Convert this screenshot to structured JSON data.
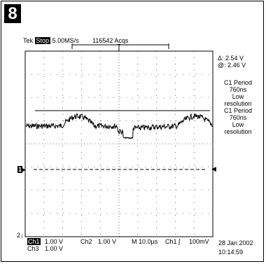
{
  "figure": {
    "number": "8"
  },
  "header": {
    "brand": "Tek",
    "state": "Stop",
    "rate": "5.00MS/s",
    "acqs": "116542 Acqs",
    "trigger_marker": "T"
  },
  "measurements": {
    "delta": "Δ: 2.54 V",
    "at": "@: 2.46 V",
    "items": [
      {
        "line1": "C1 Period",
        "line2": "760ns",
        "line3": "Low",
        "line4": "resolution"
      },
      {
        "line1": "C1 Period",
        "line2": "760ns",
        "line3": "Low",
        "line4": "resolution"
      }
    ]
  },
  "markers": {
    "ch1": "1",
    "ch2": "2"
  },
  "footer": {
    "ch1": "Ch1",
    "ch1_scale": "1.00 V",
    "ch2": "Ch2",
    "ch2_scale": "1.00 V",
    "timebase": "M 10.0µs",
    "trig_src": "Ch1",
    "trig_slope": "∫",
    "trig_level": "100mV",
    "ch3": "Ch3",
    "ch3_scale": "1.00 V",
    "date": "28 Jan 2002",
    "time": "10:14:59"
  },
  "colors": {
    "trace": "#000000",
    "grid": "#000000",
    "background": "#ffffff"
  }
}
